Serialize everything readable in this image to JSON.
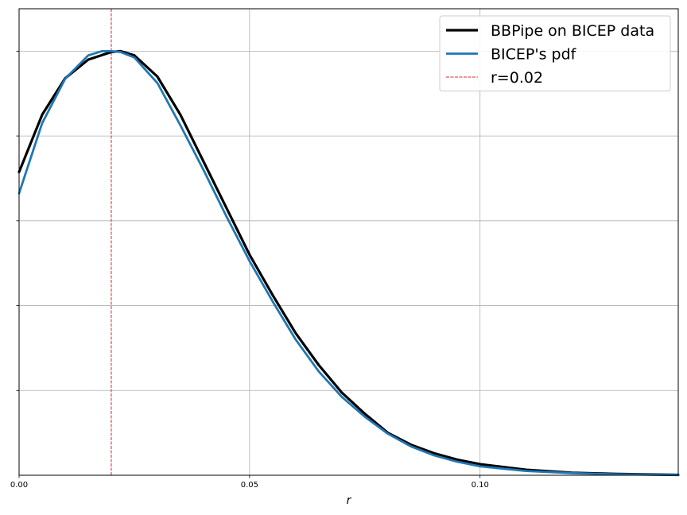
{
  "chart_data": {
    "type": "line",
    "xlabel": "r",
    "ylabel": "",
    "title": "",
    "xlim": [
      0.0,
      0.143
    ],
    "ylim": [
      0.0,
      1.1
    ],
    "xticks": [
      0.0,
      0.05,
      0.1
    ],
    "xtick_labels": [
      "0.00",
      "0.05",
      "0.10"
    ],
    "yticks": [
      0.2,
      0.4,
      0.6,
      0.8,
      1.0
    ],
    "ytick_labels_shown": false,
    "grid": true,
    "legend_position": "top-right",
    "series": [
      {
        "name": "BBPipe on BICEP data",
        "color": "#000000",
        "x": [
          0.0,
          0.005,
          0.01,
          0.015,
          0.02,
          0.022,
          0.025,
          0.03,
          0.035,
          0.04,
          0.045,
          0.05,
          0.055,
          0.06,
          0.065,
          0.07,
          0.075,
          0.08,
          0.085,
          0.09,
          0.095,
          0.1,
          0.11,
          0.12,
          0.13,
          0.143
        ],
        "y": [
          0.715,
          0.85,
          0.936,
          0.98,
          0.998,
          1.0,
          0.99,
          0.94,
          0.85,
          0.74,
          0.63,
          0.52,
          0.425,
          0.335,
          0.26,
          0.195,
          0.145,
          0.1,
          0.072,
          0.052,
          0.037,
          0.026,
          0.013,
          0.006,
          0.003,
          0.001
        ]
      },
      {
        "name": "BICEP's pdf",
        "color": "#1f77b4",
        "x": [
          0.0,
          0.005,
          0.01,
          0.015,
          0.018,
          0.02,
          0.022,
          0.025,
          0.03,
          0.035,
          0.04,
          0.045,
          0.05,
          0.055,
          0.06,
          0.065,
          0.07,
          0.075,
          0.08,
          0.085,
          0.09,
          0.095,
          0.1,
          0.11,
          0.12,
          0.13,
          0.143
        ],
        "y": [
          0.665,
          0.83,
          0.935,
          0.99,
          1.0,
          1.0,
          0.998,
          0.985,
          0.925,
          0.825,
          0.72,
          0.61,
          0.505,
          0.41,
          0.32,
          0.245,
          0.185,
          0.138,
          0.098,
          0.068,
          0.047,
          0.032,
          0.021,
          0.01,
          0.005,
          0.002,
          0.001
        ]
      }
    ],
    "vlines": [
      {
        "name": "r=0.02",
        "x": 0.02,
        "color": "#d62728",
        "style": "dashed"
      }
    ]
  }
}
